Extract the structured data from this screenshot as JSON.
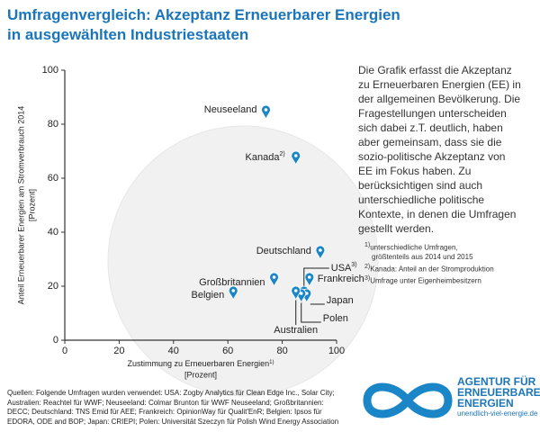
{
  "chart_data": {
    "type": "scatter",
    "title": [
      "Umfragenvergleich: Akzeptanz Erneuerbarer Energien",
      "in ausgewählten Industriestaaten"
    ],
    "y_label": [
      "Anteil Erneuerbarer Energien am Stromverbrauch 2014",
      "[Prozent]"
    ],
    "x_label": [
      "Zustimmung zu Erneuerbaren Energien",
      "[Prozent]"
    ],
    "x_label_note": "1)",
    "point_labels": [
      "Neuseeland",
      "Kanada",
      "Deutschland",
      "Großbritannien",
      "Belgien",
      "USA",
      "Frankreich",
      "Japan",
      "Polen",
      "Australien"
    ],
    "point_label_notes": [
      null,
      "2)",
      null,
      null,
      null,
      "3)",
      null,
      null,
      null,
      null
    ],
    "x": [
      74,
      85,
      94,
      77,
      62,
      88,
      90,
      89,
      87,
      85
    ],
    "y": [
      82,
      65,
      30,
      20,
      15,
      15,
      20,
      14,
      14,
      15
    ],
    "color": "#1a86c8",
    "xlim": [
      0,
      100
    ],
    "xticks": [
      0,
      20,
      40,
      60,
      80,
      100
    ],
    "ylim": [
      0,
      100
    ],
    "yticks": [
      0,
      20,
      40,
      60,
      80,
      100
    ]
  },
  "description": [
    "Die Grafik erfasst die Akzeptanz",
    "zu Erneuerbaren Energien (EE) in",
    "der allgemeinen Bevölkerung. Die",
    "Fragestellungen unterscheiden",
    "sich dabei z.T. deutlich, haben",
    "aber gemeinsam, dass sie die",
    "sozio-politische Akzeptanz von",
    "EE im Fokus haben. Zu",
    "berücksichtigen sind auch",
    "unterschiedliche politische",
    "Kontexte, in denen die Umfragen",
    "gestellt werden."
  ],
  "footnotes": [
    {
      "mark": "1)",
      "text": [
        "unterschiedliche Umfragen,",
        "größtenteils aus 2014 und 2015"
      ]
    },
    {
      "mark": "2)",
      "text": [
        "Kanada: Anteil an der Stromproduktion"
      ]
    },
    {
      "mark": "3)",
      "text": [
        "Umfrage unter Eigenheimbesitzern"
      ]
    }
  ],
  "sources": [
    "Quellen: Folgende Umfragen wurden verwendet: USA: Zogby Analytics für Clean Edge Inc., Solar City;",
    "Australien: Reachtel für  WWF; Neuseeland: Colmar Brunton für WWF Neuseeland; Großbritannien:",
    "DECC; Deutschland: TNS Emid für AEE; Frankreich: OpinionWay für Qualit'EnR; Belgien: Ipsos für",
    "EDORA, ODE and BOP; Japan: CRIEPI; Polen:  Universität Szeczyn für Polish Wind Energy Association"
  ],
  "logo": {
    "lines": [
      "AGENTUR FÜR",
      "ERNEUERBARE",
      "ENERGIEN"
    ],
    "url": "unendlich-viel-energie.de"
  }
}
